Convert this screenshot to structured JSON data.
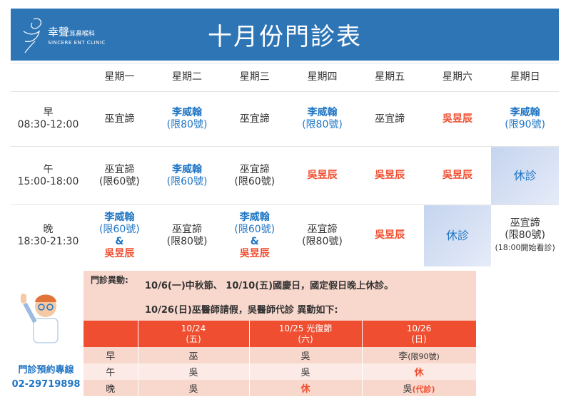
{
  "header": {
    "title": "十月份門診表",
    "logo_zh": "幸聲",
    "logo_zh_sub": "耳鼻喉科",
    "logo_en": "SINCERE ENT CLINIC"
  },
  "days": [
    "星期一",
    "星期二",
    "星期三",
    "星期四",
    "星期五",
    "星期六",
    "星期日"
  ],
  "periods": [
    {
      "name": "早",
      "time": "08:30-12:00"
    },
    {
      "name": "午",
      "time": "15:00-18:00"
    },
    {
      "name": "晚",
      "time": "18:30-21:30"
    }
  ],
  "schedule": {
    "morning": [
      {
        "doc": "巫宜諦"
      },
      {
        "doc": "李威翰",
        "limit": "(限80號)"
      },
      {
        "doc": "巫宜諦"
      },
      {
        "doc": "李威翰",
        "limit": "(限80號)"
      },
      {
        "doc": "巫宜諦"
      },
      {
        "doc": "吳昱辰"
      },
      {
        "doc": "李威翰",
        "limit": "(限90號)"
      }
    ],
    "afternoon": [
      {
        "doc": "巫宜諦",
        "limit": "(限60號)"
      },
      {
        "doc": "李威翰",
        "limit": "(限60號)"
      },
      {
        "doc": "巫宜諦",
        "limit": "(限60號)"
      },
      {
        "doc": "吳昱辰"
      },
      {
        "doc": "吳昱辰"
      },
      {
        "doc": "吳昱辰"
      },
      {
        "closed": "休診"
      }
    ],
    "evening": [
      {
        "doc": "李威翰",
        "limit": "(限60號)",
        "amp": "&",
        "doc2": "吳昱辰"
      },
      {
        "doc": "巫宜諦",
        "limit": "(限80號)"
      },
      {
        "doc": "李威翰",
        "limit": "(限60號)",
        "amp": "&",
        "doc2": "吳昱辰"
      },
      {
        "doc": "巫宜諦",
        "limit": "(限80號)"
      },
      {
        "doc": "吳昱辰"
      },
      {
        "closed": "休診"
      },
      {
        "doc": "巫宜諦",
        "limit": "(限80號)",
        "note": "(18:00開始看診)"
      }
    ]
  },
  "hotline": {
    "label": "門診預約專線",
    "phone": "02-29719898"
  },
  "notes": {
    "label": "門診異動:",
    "line1": "10/6(一)中秋節、 10/10(五)國慶日，國定假日晚上休診。",
    "line2": "10/26(日)巫醫師請假，吳醫師代診 異動如下:"
  },
  "changes": {
    "cols": [
      {
        "date": "10/24",
        "day": "(五)"
      },
      {
        "date": "10/25 光復節",
        "day": "(六)"
      },
      {
        "date": "10/26",
        "day": "(日)"
      }
    ],
    "rows": [
      {
        "p": "早",
        "c1": "巫",
        "c2": "吳",
        "c3": "李",
        "c3b": "(限90號)"
      },
      {
        "p": "午",
        "c1": "吳",
        "c2": "吳",
        "c3r": "休"
      },
      {
        "p": "晚",
        "c1": "吳",
        "c2r": "休",
        "c3": "吳",
        "c3r": "(代診)"
      }
    ]
  },
  "colors": {
    "brand": "#2e75b6",
    "doctor_li": "#1f75c4",
    "doctor_wu": "#f04e30",
    "notes_bg": "#f8d7cc"
  }
}
